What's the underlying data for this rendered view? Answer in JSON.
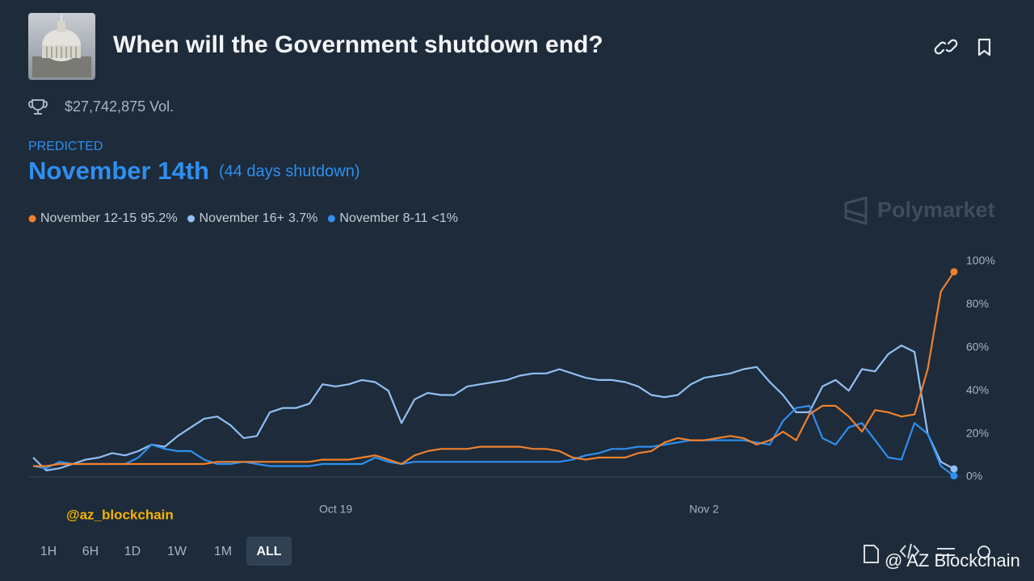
{
  "header": {
    "title": "When will the Government shutdown end?",
    "volume": "$27,742,875 Vol.",
    "predicted_label": "PREDICTED",
    "predicted_value": "November 14th",
    "predicted_note": "(44 days shutdown)",
    "brand": "Polymarket"
  },
  "chart_data": {
    "type": "line",
    "categories": [
      null,
      null,
      null,
      null,
      null,
      null,
      null,
      null,
      null,
      null,
      null,
      null,
      null,
      null,
      null,
      null,
      null,
      null,
      null,
      null,
      null,
      null,
      null,
      "Oct 19",
      null,
      null,
      null,
      null,
      null,
      null,
      null,
      null,
      null,
      null,
      null,
      null,
      null,
      null,
      null,
      null,
      null,
      null,
      null,
      null,
      null,
      null,
      null,
      null,
      null,
      null,
      null,
      "Nov 2",
      null,
      null,
      null,
      null,
      null,
      null,
      null,
      null,
      null,
      null,
      null,
      null,
      null,
      null,
      null,
      null,
      null,
      null,
      null
    ],
    "series": [
      {
        "name": "November 12-15",
        "legend": "95.2%",
        "color": "#f0812d",
        "values": [
          5,
          5,
          6,
          6,
          6,
          6,
          6,
          6,
          6,
          6,
          6,
          6,
          6,
          6,
          7,
          7,
          7,
          7,
          7,
          7,
          7,
          7,
          8,
          8,
          8,
          9,
          10,
          8,
          6,
          10,
          12,
          13,
          13,
          13,
          14,
          14,
          14,
          14,
          13,
          13,
          12,
          9,
          8,
          9,
          9,
          9,
          11,
          12,
          16,
          18,
          17,
          17,
          18,
          19,
          18,
          15,
          17,
          21,
          17,
          29,
          33,
          33,
          28,
          21,
          31,
          30,
          28,
          29,
          50,
          86,
          95.2
        ]
      },
      {
        "name": "November 16+",
        "legend": "3.7%",
        "color": "#92bff3",
        "values": [
          9,
          3,
          4,
          6,
          8,
          9,
          11,
          10,
          12,
          15,
          14,
          19,
          23,
          27,
          28,
          24,
          18,
          19,
          30,
          32,
          32,
          34,
          43,
          42,
          43,
          45,
          44,
          40,
          25,
          36,
          39,
          38,
          38,
          42,
          43,
          44,
          45,
          47,
          48,
          48,
          50,
          48,
          46,
          45,
          45,
          44,
          42,
          38,
          37,
          38,
          43,
          46,
          47,
          48,
          50,
          51,
          44,
          38,
          30,
          30,
          42,
          45,
          40,
          50,
          49,
          57,
          61,
          58,
          20,
          7,
          3.7
        ]
      },
      {
        "name": "November 8-11",
        "legend": "<1%",
        "color": "#2e8ff0",
        "values": [
          5,
          4,
          7,
          6,
          6,
          6,
          6,
          6,
          9,
          15,
          13,
          12,
          12,
          8,
          6,
          6,
          7,
          6,
          5,
          5,
          5,
          5,
          6,
          6,
          6,
          6,
          9,
          7,
          6,
          7,
          7,
          7,
          7,
          7,
          7,
          7,
          7,
          7,
          7,
          7,
          7,
          8,
          10,
          11,
          13,
          13,
          14,
          14,
          15,
          16,
          17,
          17,
          17,
          17,
          17,
          16,
          15,
          26,
          32,
          33,
          18,
          15,
          23,
          25,
          17,
          9,
          8,
          25,
          20,
          5,
          0.5
        ]
      }
    ],
    "ylim": [
      0,
      100
    ],
    "yticks": [
      {
        "value": 0,
        "label": "0%"
      },
      {
        "value": 20,
        "label": "20%"
      },
      {
        "value": 40,
        "label": "40%"
      },
      {
        "value": 60,
        "label": "60%"
      },
      {
        "value": 80,
        "label": "80%"
      },
      {
        "value": 100,
        "label": "100%"
      }
    ],
    "grid": true,
    "legend": "top-left"
  },
  "watermark": "@az_blockchain",
  "timeframes": [
    "1H",
    "6H",
    "1D",
    "1W",
    "1M",
    "ALL"
  ],
  "active_timeframe": "ALL",
  "footer_watermark": "@ AZ Blockchain"
}
